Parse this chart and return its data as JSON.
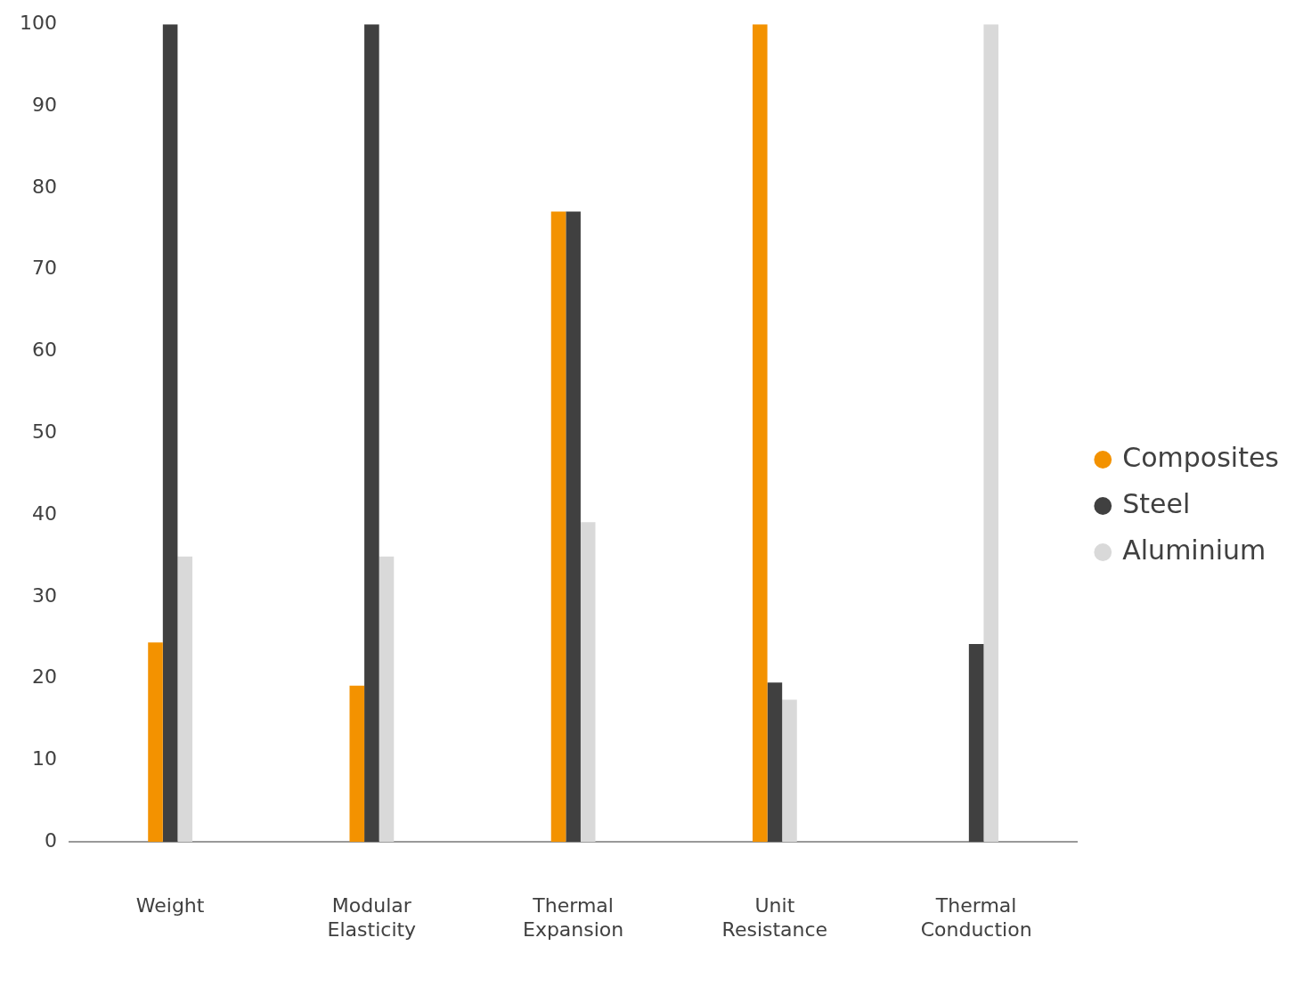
{
  "chart_data": {
    "type": "bar",
    "categories": [
      "Weight",
      "Modular Elasticity",
      "Thermal Expansion",
      "Unit Resistance",
      "Thermal Conduction"
    ],
    "series": [
      {
        "name": "Composites",
        "color": "#f39200",
        "values": [
          24.4,
          19.1,
          77.1,
          100,
          null
        ]
      },
      {
        "name": "Steel",
        "color": "#404040",
        "values": [
          100,
          100,
          77.1,
          19.5,
          24.2
        ]
      },
      {
        "name": "Aluminium",
        "color": "#d9d9d9",
        "values": [
          34.9,
          34.9,
          39.1,
          17.4,
          100
        ]
      }
    ],
    "ylim": [
      0,
      100
    ],
    "yticks": [
      0,
      10,
      20,
      30,
      40,
      50,
      60,
      70,
      80,
      90,
      100
    ],
    "grid": false,
    "legend": "right",
    "marker": "circle"
  }
}
